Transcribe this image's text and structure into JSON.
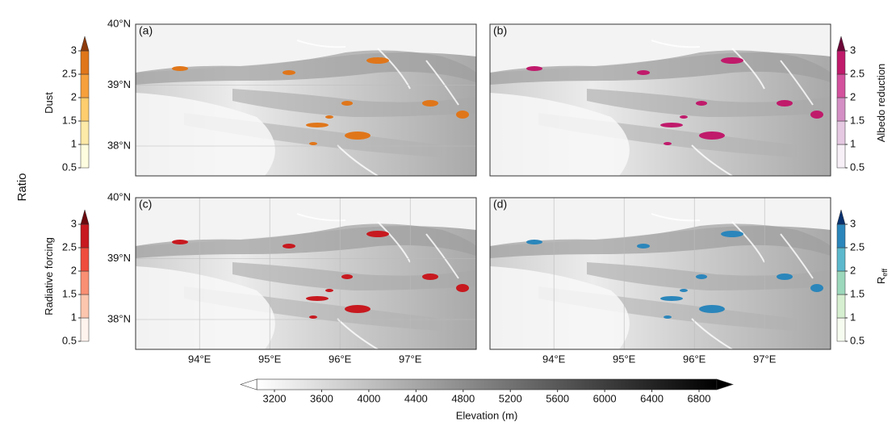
{
  "ratio_label": "Ratio",
  "chart_data": [
    {
      "type": "map",
      "panel_label": "(a)",
      "xlim": [
        93.09,
        97.94
      ],
      "ylim": [
        37.51,
        40
      ],
      "yticks": [
        {
          "value": 38,
          "label": "38°N"
        },
        {
          "value": 39,
          "label": "39°N"
        },
        {
          "value": 40,
          "label": "40°N"
        }
      ],
      "colorbar": {
        "label": "Dust",
        "position": "left",
        "lim": [
          0.5,
          3
        ],
        "ticks": [
          0.5,
          1,
          1.5,
          2,
          2.5,
          3
        ],
        "colors": [
          "#fffde0",
          "#fde9a8",
          "#fdcd6e",
          "#f6a03c",
          "#e0761a",
          "#8c3a0b"
        ]
      }
    },
    {
      "type": "map",
      "panel_label": "(b)",
      "xlim": [
        93.09,
        97.94
      ],
      "ylim": [
        37.51,
        40
      ],
      "colorbar": {
        "label": "Albedo reduction",
        "position": "right",
        "lim": [
          0.5,
          3
        ],
        "ticks": [
          0.5,
          1,
          1.5,
          2,
          2.5,
          3
        ],
        "colors": [
          "#f7f0f7",
          "#e5c8e2",
          "#d48fc4",
          "#d3519d",
          "#c01a6b",
          "#6b0637"
        ]
      }
    },
    {
      "type": "map",
      "panel_label": "(c)",
      "xlim": [
        93.09,
        97.94
      ],
      "ylim": [
        37.51,
        40
      ],
      "xticks": [
        {
          "value": 94,
          "label": "94°E"
        },
        {
          "value": 95,
          "label": "95°E"
        },
        {
          "value": 96,
          "label": "96°E"
        },
        {
          "value": 97,
          "label": "97°E"
        }
      ],
      "yticks": [
        {
          "value": 38,
          "label": "38°N"
        },
        {
          "value": 39,
          "label": "39°N"
        },
        {
          "value": 40,
          "label": "40°N"
        }
      ],
      "colorbar": {
        "label": "Radiative forcing",
        "position": "left",
        "lim": [
          0.5,
          3
        ],
        "ticks": [
          0.5,
          1,
          1.5,
          2,
          2.5,
          3
        ],
        "colors": [
          "#fff3ee",
          "#fcc6ae",
          "#f98f73",
          "#ef4d3d",
          "#c7191f",
          "#6b0a0f"
        ]
      }
    },
    {
      "type": "map",
      "panel_label": "(d)",
      "xlim": [
        93.09,
        97.94
      ],
      "ylim": [
        37.51,
        40
      ],
      "xticks": [
        {
          "value": 94,
          "label": "94°E"
        },
        {
          "value": 95,
          "label": "95°E"
        },
        {
          "value": 96,
          "label": "96°E"
        },
        {
          "value": 97,
          "label": "97°E"
        }
      ],
      "colorbar": {
        "label": "R",
        "label_sub": "eff",
        "position": "right",
        "lim": [
          0.5,
          3
        ],
        "ticks": [
          0.5,
          1,
          1.5,
          2,
          2.5,
          3
        ],
        "colors": [
          "#f7fcf0",
          "#d6efd0",
          "#9cd8bb",
          "#5cb9cd",
          "#2b86bb",
          "#08316e"
        ]
      }
    }
  ],
  "elevation_colorbar": {
    "label": "Elevation (m)",
    "lim": [
      3050,
      6950
    ],
    "ticks": [
      3200,
      3600,
      4000,
      4400,
      4800,
      5200,
      5600,
      6000,
      6400,
      6800
    ],
    "colors": [
      "#ffffff",
      "#000000"
    ]
  }
}
